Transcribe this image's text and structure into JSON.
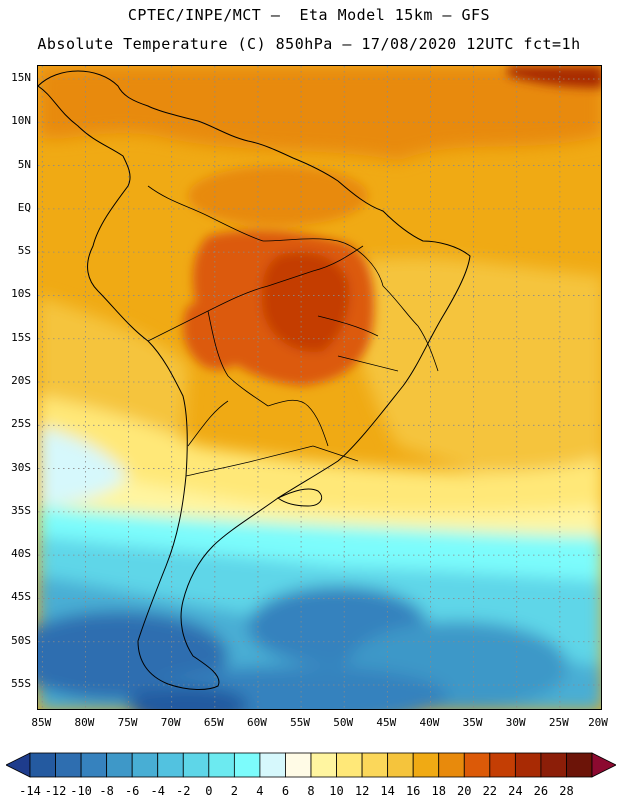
{
  "header": {
    "title_line1": "CPTEC/INPE/MCT –  Eta Model 15km – GFS",
    "title_line2": "Absolute Temperature (C) 850hPa – 17/08/2020 12UTC fct=1h"
  },
  "map": {
    "lat_labels": [
      "15N",
      "10N",
      "5N",
      "EQ",
      "5S",
      "10S",
      "15S",
      "20S",
      "25S",
      "30S",
      "35S",
      "40S",
      "45S",
      "50S",
      "55S"
    ],
    "lat_values": [
      15,
      10,
      5,
      0,
      -5,
      -10,
      -15,
      -20,
      -25,
      -30,
      -35,
      -40,
      -45,
      -50,
      -55
    ],
    "lon_labels": [
      "85W",
      "80W",
      "75W",
      "70W",
      "65W",
      "60W",
      "55W",
      "50W",
      "45W",
      "40W",
      "35W",
      "30W",
      "25W",
      "20W"
    ],
    "lon_values": [
      -85,
      -80,
      -75,
      -70,
      -65,
      -60,
      -55,
      -50,
      -45,
      -40,
      -35,
      -30,
      -25,
      -20
    ],
    "extent": {
      "lon_min": -85.5,
      "lon_max": -20,
      "lat_max": 16.5,
      "lat_min": -58
    }
  },
  "colorbar": {
    "unit": "C",
    "tick_labels": [
      "-14",
      "-12",
      "-10",
      "-8",
      "-6",
      "-4",
      "-2",
      "0",
      "2",
      "4",
      "6",
      "8",
      "10",
      "12",
      "14",
      "16",
      "18",
      "20",
      "22",
      "24",
      "26",
      "28"
    ],
    "colors": [
      "#1e3c8c",
      "#245aa0",
      "#2e6eb0",
      "#3682be",
      "#3e98c8",
      "#48aed4",
      "#52c2e0",
      "#5ed6e8",
      "#6ceaf0",
      "#7cfcfc",
      "#d6f8fc",
      "#fffbe6",
      "#fff5a0",
      "#ffe878",
      "#fbd75a",
      "#f5c43c",
      "#f0aa14",
      "#e88a0c",
      "#dc5a08",
      "#c43e04",
      "#a82a04",
      "#8c1e08",
      "#6c1408",
      "#8c0a30"
    ]
  }
}
